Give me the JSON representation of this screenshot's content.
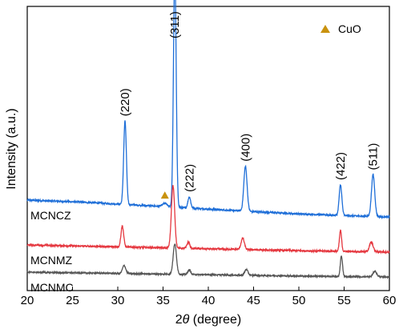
{
  "chart_data": {
    "type": "line",
    "xlabel_prefix": "2",
    "xlabel_symbol": "θ",
    "xlabel_suffix": " (degree)",
    "ylabel": "Intensity (a.u.)",
    "xlim": [
      20,
      60
    ],
    "xticks": [
      20,
      25,
      30,
      35,
      40,
      45,
      50,
      55,
      60
    ],
    "y_tick_labels": false,
    "grid": false,
    "legend": {
      "placement": "top-right",
      "label": "CuO",
      "marker": "triangle",
      "color": "#c9920e"
    },
    "series": [
      {
        "name": "MCNCZ",
        "color": "#1f6fd8",
        "baseline": 1.6,
        "noise": 0.025,
        "points": [
          [
            20,
            1.0
          ],
          [
            25,
            0.95
          ],
          [
            30,
            0.88
          ],
          [
            35,
            0.8
          ],
          [
            40,
            0.72
          ],
          [
            45,
            0.64
          ],
          [
            50,
            0.57
          ],
          [
            55,
            0.52
          ],
          [
            60,
            0.47
          ]
        ],
        "peaks": [
          {
            "x": 30.8,
            "h": 2.6,
            "w": 0.15
          },
          {
            "x": 35.2,
            "h": 0.1,
            "w": 0.25
          },
          {
            "x": 36.3,
            "h": 7.4,
            "w": 0.15
          },
          {
            "x": 37.9,
            "h": 0.35,
            "w": 0.15
          },
          {
            "x": 44.1,
            "h": 1.4,
            "w": 0.18
          },
          {
            "x": 54.6,
            "h": 0.95,
            "w": 0.15
          },
          {
            "x": 58.2,
            "h": 1.3,
            "w": 0.18
          }
        ]
      },
      {
        "name": "MCNMZ",
        "color": "#e5373f",
        "baseline": 0.8,
        "noise": 0.025,
        "points": [
          [
            20,
            0.4
          ],
          [
            25,
            0.37
          ],
          [
            30,
            0.34
          ],
          [
            35,
            0.31
          ],
          [
            40,
            0.28
          ],
          [
            45,
            0.25
          ],
          [
            50,
            0.22
          ],
          [
            55,
            0.2
          ],
          [
            60,
            0.18
          ]
        ],
        "peaks": [
          {
            "x": 30.5,
            "h": 0.65,
            "w": 0.15
          },
          {
            "x": 36.1,
            "h": 1.95,
            "w": 0.18
          },
          {
            "x": 37.8,
            "h": 0.2,
            "w": 0.15
          },
          {
            "x": 43.8,
            "h": 0.35,
            "w": 0.18
          },
          {
            "x": 54.6,
            "h": 0.65,
            "w": 0.12
          },
          {
            "x": 58.0,
            "h": 0.3,
            "w": 0.2
          }
        ]
      },
      {
        "name": "MCNMC",
        "color": "#555555",
        "baseline": 0.0,
        "noise": 0.02,
        "points": [
          [
            20,
            0.35
          ],
          [
            25,
            0.33
          ],
          [
            30,
            0.31
          ],
          [
            35,
            0.29
          ],
          [
            40,
            0.27
          ],
          [
            45,
            0.25
          ],
          [
            50,
            0.23
          ],
          [
            55,
            0.21
          ],
          [
            60,
            0.2
          ]
        ],
        "peaks": [
          {
            "x": 30.7,
            "h": 0.25,
            "w": 0.18
          },
          {
            "x": 36.3,
            "h": 0.95,
            "w": 0.18
          },
          {
            "x": 37.9,
            "h": 0.15,
            "w": 0.15
          },
          {
            "x": 44.2,
            "h": 0.18,
            "w": 0.18
          },
          {
            "x": 54.7,
            "h": 0.65,
            "w": 0.12
          },
          {
            "x": 58.4,
            "h": 0.18,
            "w": 0.2
          }
        ]
      }
    ],
    "peak_labels": [
      {
        "text": "(220)",
        "x": 30.8
      },
      {
        "text": "(311)",
        "x": 36.3
      },
      {
        "text": "(222)",
        "x": 37.9
      },
      {
        "text": "(400)",
        "x": 44.1
      },
      {
        "text": "(422)",
        "x": 54.6
      },
      {
        "text": "(511)",
        "x": 58.2
      }
    ],
    "cuo_markers": [
      {
        "x": 35.2
      }
    ]
  }
}
